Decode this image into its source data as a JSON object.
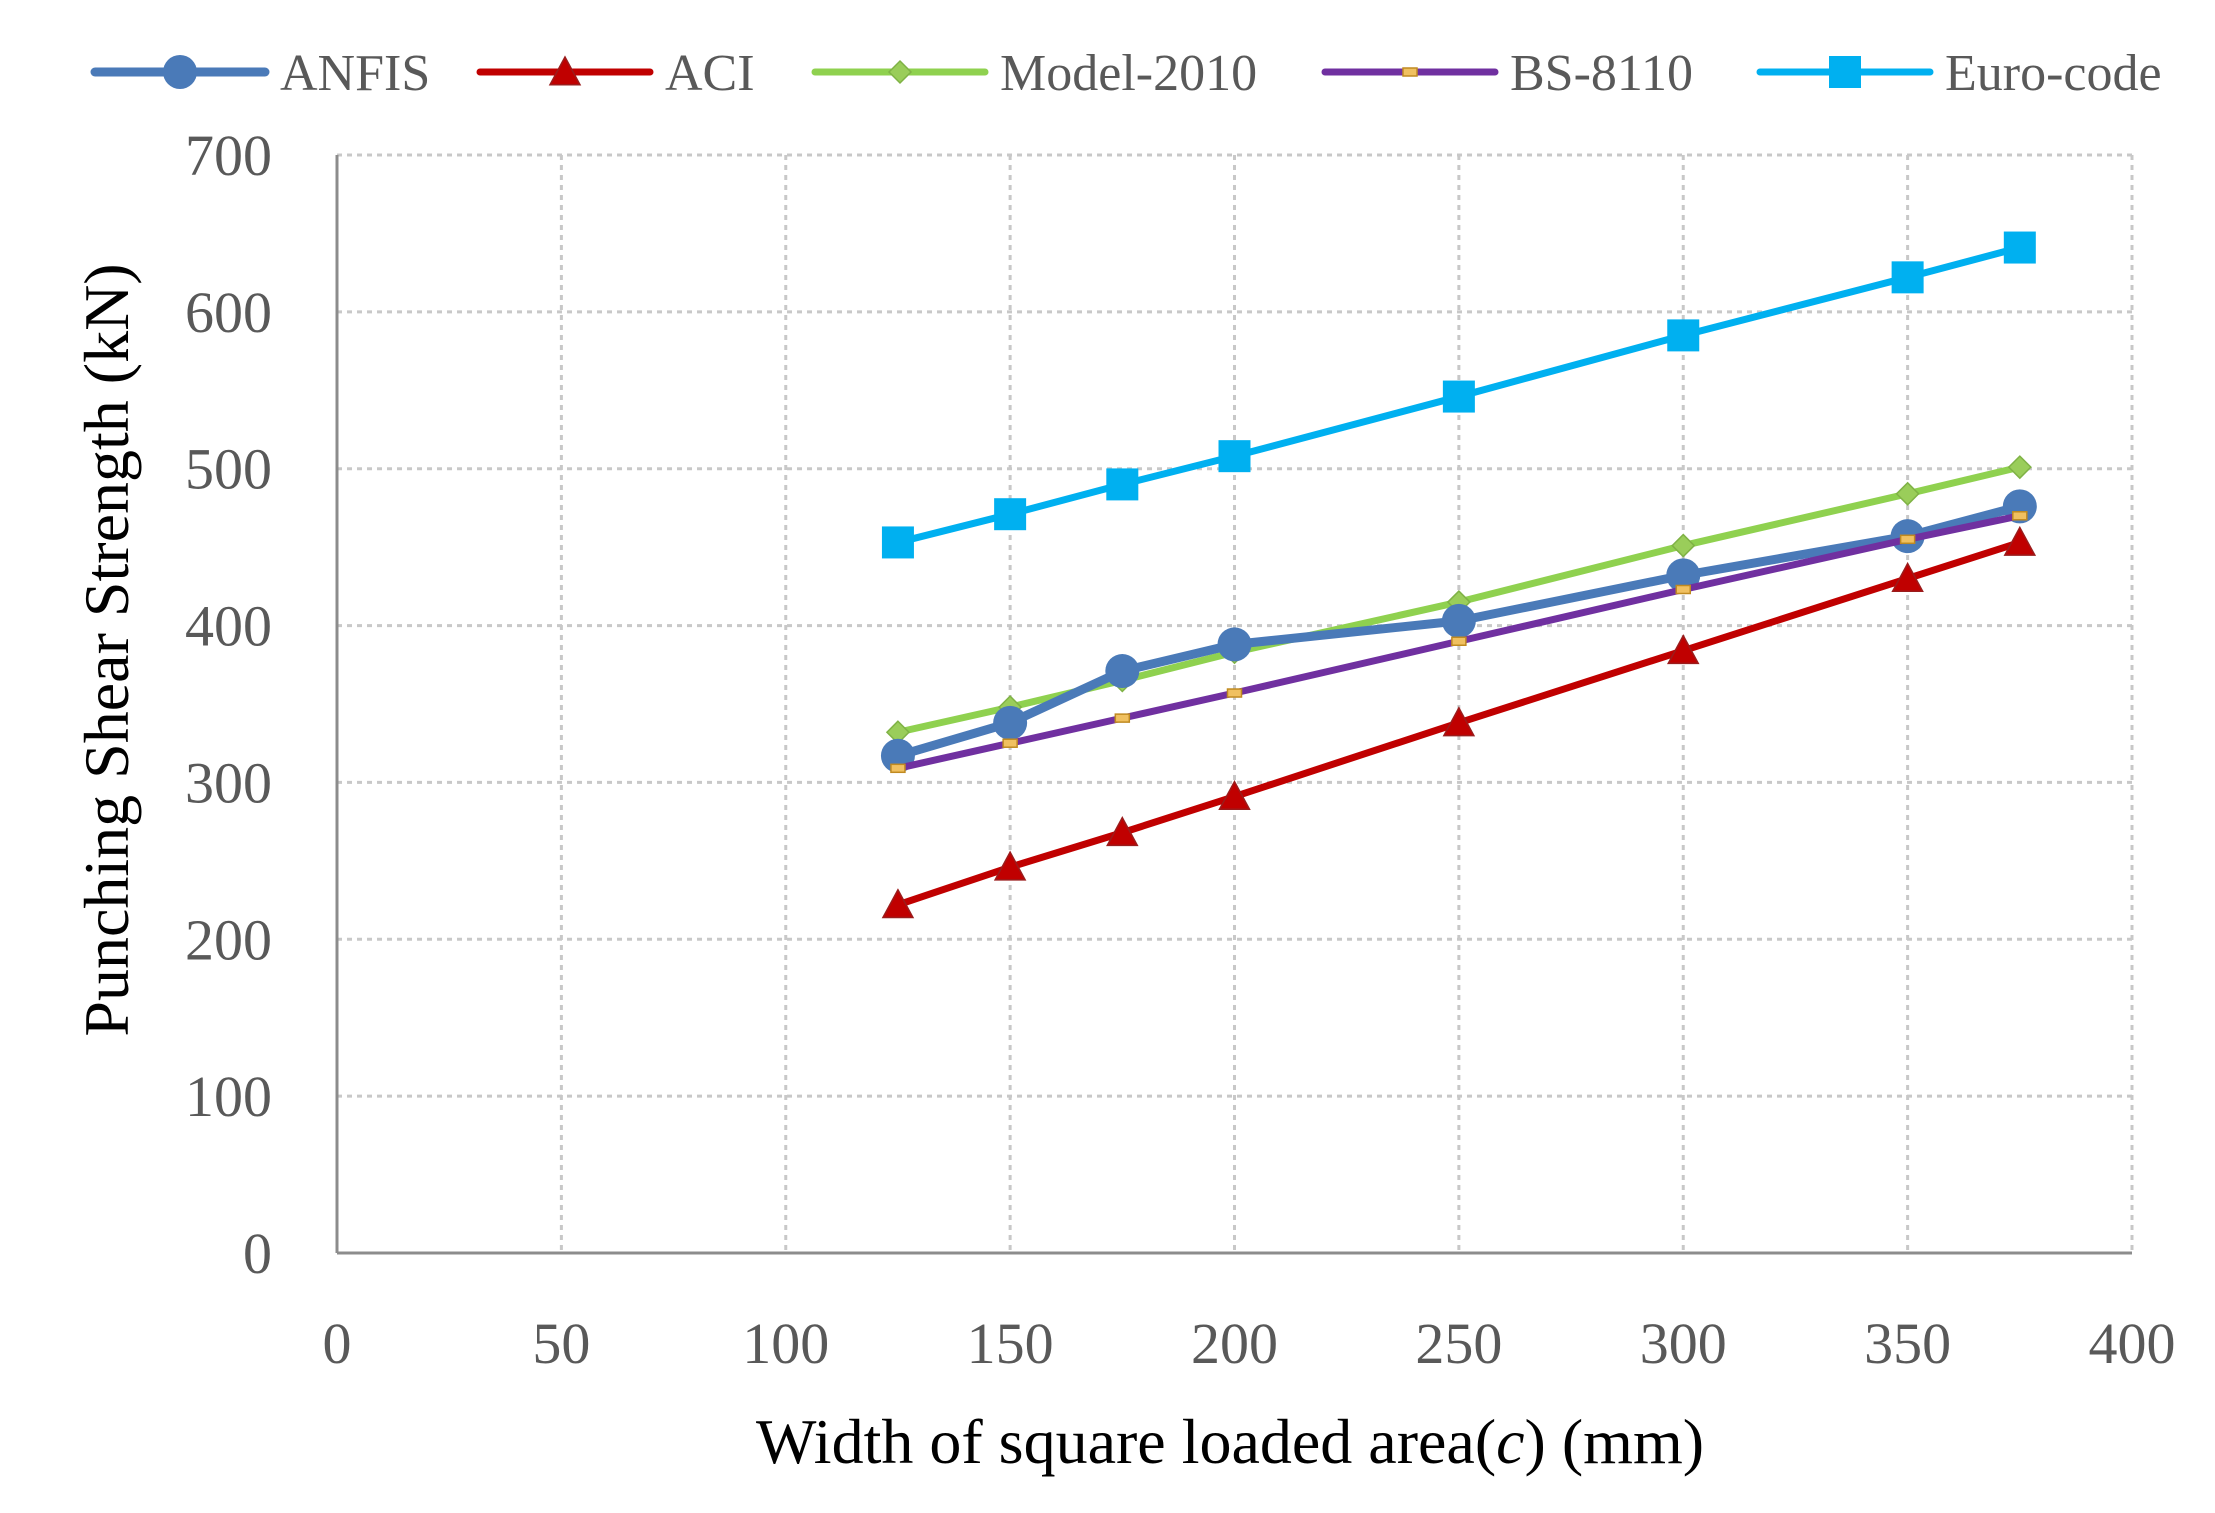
{
  "chart_data": {
    "type": "line",
    "title": "",
    "xlabel_prefix": "Width of square loaded area(",
    "xlabel_italic": "c",
    "xlabel_suffix": ") (mm)",
    "ylabel": "Punching Shear Strength (kN)",
    "xlim": [
      0,
      400
    ],
    "ylim": [
      0,
      700
    ],
    "x_ticks": [
      "0",
      "50",
      "100",
      "150",
      "200",
      "250",
      "300",
      "350",
      "400"
    ],
    "y_ticks": [
      "0",
      "100",
      "200",
      "300",
      "400",
      "500",
      "600",
      "700"
    ],
    "x_tick_values": [
      0,
      50,
      100,
      150,
      200,
      250,
      300,
      350,
      400
    ],
    "y_tick_values": [
      0,
      100,
      200,
      300,
      400,
      500,
      600,
      700
    ],
    "grid": true,
    "legend_position": "top",
    "x": [
      125,
      150,
      175,
      200,
      250,
      300,
      350,
      375
    ],
    "series": [
      {
        "name": "ANFIS",
        "color": "#4a7ab8",
        "marker": "circle",
        "values": [
          317,
          338,
          371,
          388,
          403,
          432,
          457,
          476
        ]
      },
      {
        "name": "ACI",
        "color": "#c00000",
        "marker": "triangle",
        "values": [
          222,
          246,
          268,
          291,
          338,
          384,
          430,
          453
        ]
      },
      {
        "name": "Model-2010",
        "color": "#8fd14f",
        "marker": "diamond",
        "values": [
          332,
          348,
          365,
          383,
          415,
          451,
          484,
          501
        ]
      },
      {
        "name": "BS-8110",
        "color": "#7030a0",
        "marker": "dash",
        "values": [
          309,
          325,
          341,
          357,
          390,
          423,
          455,
          470
        ]
      },
      {
        "name": "Euro-code",
        "color": "#00b0f0",
        "marker": "square",
        "values": [
          453,
          471,
          490,
          508,
          546,
          585,
          622,
          641
        ]
      }
    ]
  }
}
